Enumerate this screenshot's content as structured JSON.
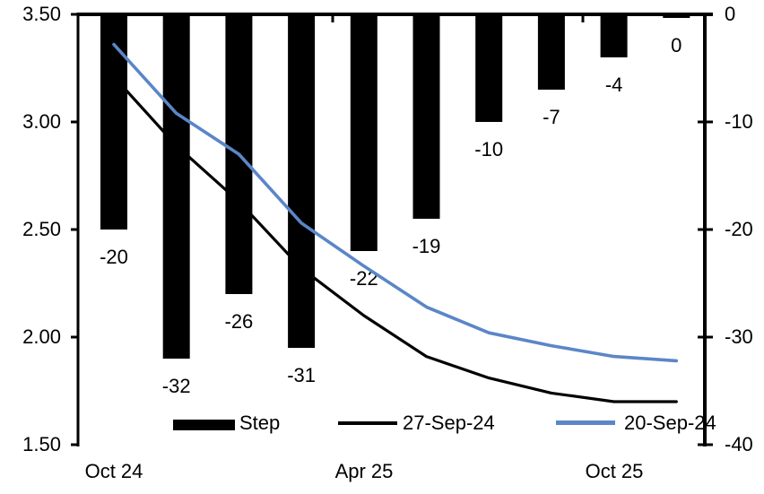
{
  "chart_data": {
    "type": "combo",
    "title": "",
    "n_categories": 10,
    "grid": false,
    "legend_position": "bottom",
    "x_ticks": [
      {
        "position": 1,
        "label": "Oct 24"
      },
      {
        "position": 5,
        "label": "Apr 25"
      },
      {
        "position": 9,
        "label": "Oct 25"
      }
    ],
    "bars": {
      "name": "Step",
      "axis": "right",
      "unit": "bp",
      "color": "#000000",
      "values": [
        -20,
        -32,
        -26,
        -31,
        -22,
        -19,
        -10,
        -7,
        -4,
        0
      ],
      "labels": [
        "-20",
        "-32",
        "-26",
        "-31",
        "-22",
        "-19",
        "-10",
        "-7",
        "-4",
        "0"
      ]
    },
    "lines": [
      {
        "name": "27-Sep-24",
        "axis": "left",
        "color": "#000000",
        "values": [
          3.21,
          2.89,
          2.63,
          2.32,
          2.1,
          1.91,
          1.81,
          1.74,
          1.7,
          1.7
        ]
      },
      {
        "name": "20-Sep-24",
        "axis": "left",
        "color": "#5b86c8",
        "values": [
          3.36,
          3.04,
          2.85,
          2.53,
          2.33,
          2.14,
          2.02,
          1.96,
          1.91,
          1.89
        ]
      }
    ],
    "left_axis": {
      "min": 1.5,
      "max": 3.5,
      "ticks": [
        "3.50",
        "3.00",
        "2.50",
        "2.00",
        "1.50"
      ]
    },
    "right_axis": {
      "min": -40,
      "max": 0,
      "ticks": [
        "0",
        "-10",
        "-20",
        "-30",
        "-40"
      ]
    }
  }
}
